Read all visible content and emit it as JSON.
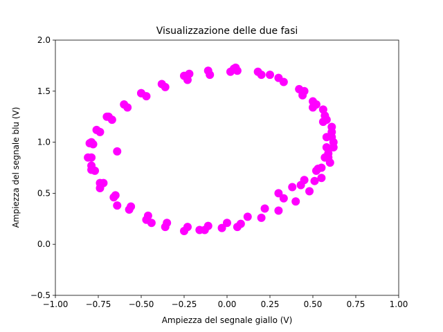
{
  "chart_data": {
    "type": "scatter",
    "title": "Visualizzazione delle due fasi",
    "xlabel": "Ampiezza del segnale giallo (V)",
    "ylabel": "Ampiezza del segnale blu (V)",
    "xlim": [
      -1.0,
      1.0
    ],
    "ylim": [
      -0.5,
      2.0
    ],
    "xticks": [
      -1.0,
      -0.75,
      -0.5,
      -0.25,
      0.0,
      0.25,
      0.5,
      0.75,
      1.0
    ],
    "xtick_labels": [
      "−1.00",
      "−0.75",
      "−0.50",
      "−0.25",
      "0.00",
      "0.25",
      "0.50",
      "0.75",
      "1.00"
    ],
    "yticks": [
      -0.5,
      0.0,
      0.5,
      1.0,
      1.5,
      2.0
    ],
    "ytick_labels": [
      "−0.5",
      "0.0",
      "0.5",
      "1.0",
      "1.5",
      "2.0"
    ],
    "grid": false,
    "color": "#ff00ff",
    "series": [
      {
        "x": [
          0.05,
          0.18,
          0.3,
          0.42,
          0.5,
          0.57,
          0.61,
          0.62,
          0.6,
          0.55,
          0.48,
          0.4,
          0.3,
          0.2,
          0.08,
          -0.03,
          -0.13,
          -0.25,
          -0.36,
          -0.47,
          -0.57,
          -0.66,
          -0.74,
          -0.79,
          -0.81,
          -0.8,
          -0.76,
          -0.69,
          -0.6,
          -0.5,
          -0.38,
          -0.25,
          -0.11,
          0.3,
          0.38,
          0.45,
          0.52,
          0.59,
          0.62,
          0.61,
          0.56,
          0.45,
          0.25,
          0.04,
          -0.22,
          -0.5,
          -0.7,
          -0.79,
          -0.79,
          -0.74,
          -0.64,
          -0.44,
          -0.16,
          0.06,
          0.06,
          0.2,
          0.33,
          0.44,
          0.52,
          0.58,
          0.61,
          0.59,
          0.53,
          0.43,
          0.33,
          0.22,
          0.12,
          0.0,
          -0.11,
          -0.23,
          -0.35,
          -0.46,
          -0.56,
          -0.65,
          -0.72,
          -0.77,
          -0.79,
          -0.78,
          -0.74,
          -0.67,
          -0.58,
          -0.47,
          -0.36,
          -0.23,
          -0.1,
          0.02,
          0.44,
          0.5,
          0.56,
          0.58,
          0.58,
          0.57,
          0.55,
          0.51,
          -0.64
        ],
        "y": [
          1.73,
          1.69,
          1.63,
          1.52,
          1.4,
          1.26,
          1.1,
          0.95,
          0.8,
          0.65,
          0.52,
          0.42,
          0.33,
          0.26,
          0.2,
          0.16,
          0.14,
          0.13,
          0.17,
          0.24,
          0.34,
          0.46,
          0.6,
          0.73,
          0.85,
          0.99,
          1.12,
          1.25,
          1.37,
          1.48,
          1.57,
          1.65,
          1.7,
          0.5,
          0.56,
          0.63,
          0.72,
          0.85,
          1.0,
          1.15,
          1.32,
          1.5,
          1.66,
          1.72,
          1.67,
          1.48,
          1.25,
          1.0,
          0.77,
          0.55,
          0.38,
          0.21,
          0.14,
          0.17,
          1.7,
          1.66,
          1.59,
          1.49,
          1.37,
          1.22,
          1.05,
          0.89,
          0.74,
          0.58,
          0.45,
          0.35,
          0.27,
          0.21,
          0.18,
          0.17,
          0.21,
          0.28,
          0.37,
          0.48,
          0.6,
          0.72,
          0.85,
          0.98,
          1.1,
          1.22,
          1.34,
          1.45,
          1.54,
          1.61,
          1.66,
          1.69,
          1.46,
          1.34,
          1.2,
          1.05,
          0.95,
          0.85,
          0.75,
          0.62,
          0.91
        ]
      }
    ]
  }
}
